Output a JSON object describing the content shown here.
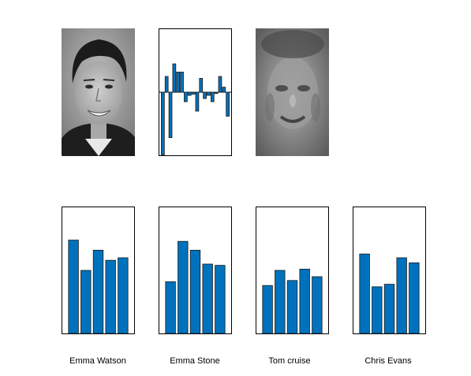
{
  "colors": {
    "bar": "#0072BD",
    "bar_edge": "#1a1a1a",
    "frame": "#000000"
  },
  "images": [
    {
      "name": "input-face-photo",
      "kind": "grayscale-photo"
    },
    {
      "name": "reconstructed-eigenface",
      "kind": "grayscale-eigenface"
    }
  ],
  "chart_data": [
    {
      "type": "bar",
      "title": "",
      "xlabel": "",
      "ylabel": "",
      "ylim": [
        -1,
        1
      ],
      "baseline": 0,
      "values": [
        -1.0,
        0.25,
        -0.72,
        0.45,
        0.32,
        0.32,
        -0.15,
        -0.05,
        -0.03,
        -0.3,
        0.22,
        -0.1,
        -0.05,
        -0.15,
        -0.02,
        0.25,
        0.08,
        -0.38
      ]
    },
    {
      "type": "bar",
      "title": "",
      "ylim": [
        0,
        1
      ],
      "values": [
        0.74,
        0.5,
        0.66,
        0.58,
        0.6
      ],
      "xlabel": "Emma Watson"
    },
    {
      "type": "bar",
      "title": "",
      "ylim": [
        0,
        1
      ],
      "values": [
        0.41,
        0.73,
        0.66,
        0.55,
        0.54
      ],
      "xlabel": "Emma Stone"
    },
    {
      "type": "bar",
      "title": "",
      "ylim": [
        0,
        1
      ],
      "values": [
        0.38,
        0.5,
        0.42,
        0.51,
        0.45
      ],
      "xlabel": "Tom cruise"
    },
    {
      "type": "bar",
      "title": "",
      "ylim": [
        0,
        1
      ],
      "values": [
        0.63,
        0.37,
        0.39,
        0.6,
        0.56
      ],
      "xlabel": "Chris Evans"
    }
  ]
}
